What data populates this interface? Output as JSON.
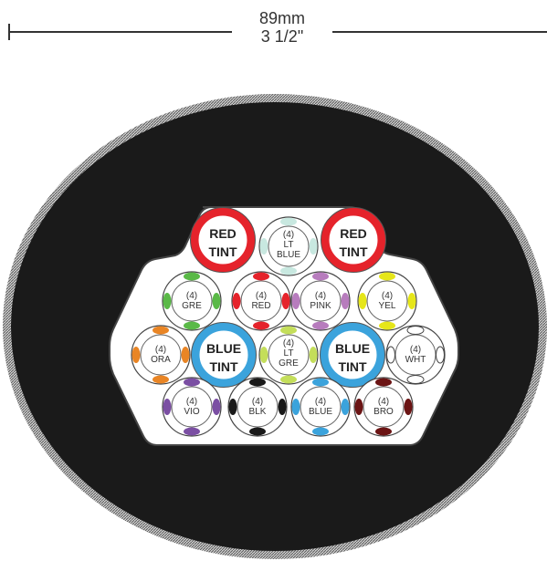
{
  "dimension": {
    "metric": "89mm",
    "imperial": "3 1/2\""
  },
  "colors": {
    "jacket": "#1a1a1a",
    "jacket_edge": "#9a9a9a",
    "core_bg": "#ffffff",
    "tint_red": "#e5232b",
    "tint_blue": "#3ba3dc",
    "line": "#333333"
  },
  "subunits": [
    {
      "id": "red-tint-1",
      "kind": "tint",
      "label": [
        "RED",
        "TINT"
      ],
      "color": "#e5232b"
    },
    {
      "id": "lt-blue",
      "kind": "sub",
      "label": [
        "(4)",
        "LT",
        "BLUE"
      ],
      "color": "#c8e8e0"
    },
    {
      "id": "red-tint-2",
      "kind": "tint",
      "label": [
        "RED",
        "TINT"
      ],
      "color": "#e5232b"
    },
    {
      "id": "gre",
      "kind": "sub",
      "label": [
        "(4)",
        "GRE"
      ],
      "color": "#5ab947"
    },
    {
      "id": "red",
      "kind": "sub",
      "label": [
        "(4)",
        "RED"
      ],
      "color": "#e5232b"
    },
    {
      "id": "pink",
      "kind": "sub",
      "label": [
        "(4)",
        "PINK"
      ],
      "color": "#b77cbd"
    },
    {
      "id": "yel",
      "kind": "sub",
      "label": [
        "(4)",
        "YEL"
      ],
      "color": "#e6e619"
    },
    {
      "id": "ora",
      "kind": "sub",
      "label": [
        "(4)",
        "ORA"
      ],
      "color": "#e98525"
    },
    {
      "id": "blue-tint-1",
      "kind": "tint",
      "label": [
        "BLUE",
        "TINT"
      ],
      "color": "#3ba3dc"
    },
    {
      "id": "lt-gre",
      "kind": "sub",
      "label": [
        "(4)",
        "LT",
        "GRE"
      ],
      "color": "#c4de5a"
    },
    {
      "id": "blue-tint-2",
      "kind": "tint",
      "label": [
        "BLUE",
        "TINT"
      ],
      "color": "#3ba3dc"
    },
    {
      "id": "wht",
      "kind": "sub",
      "label": [
        "(4)",
        "WHT"
      ],
      "color": "#ffffff"
    },
    {
      "id": "vio",
      "kind": "sub",
      "label": [
        "(4)",
        "VIO"
      ],
      "color": "#7b4fa3"
    },
    {
      "id": "blk",
      "kind": "sub",
      "label": [
        "(4)",
        "BLK"
      ],
      "color": "#1a1a1a"
    },
    {
      "id": "blue",
      "kind": "sub",
      "label": [
        "(4)",
        "BLUE"
      ],
      "color": "#3ba3dc"
    },
    {
      "id": "bro",
      "kind": "sub",
      "label": [
        "(4)",
        "BRO"
      ],
      "color": "#6b1414"
    }
  ]
}
